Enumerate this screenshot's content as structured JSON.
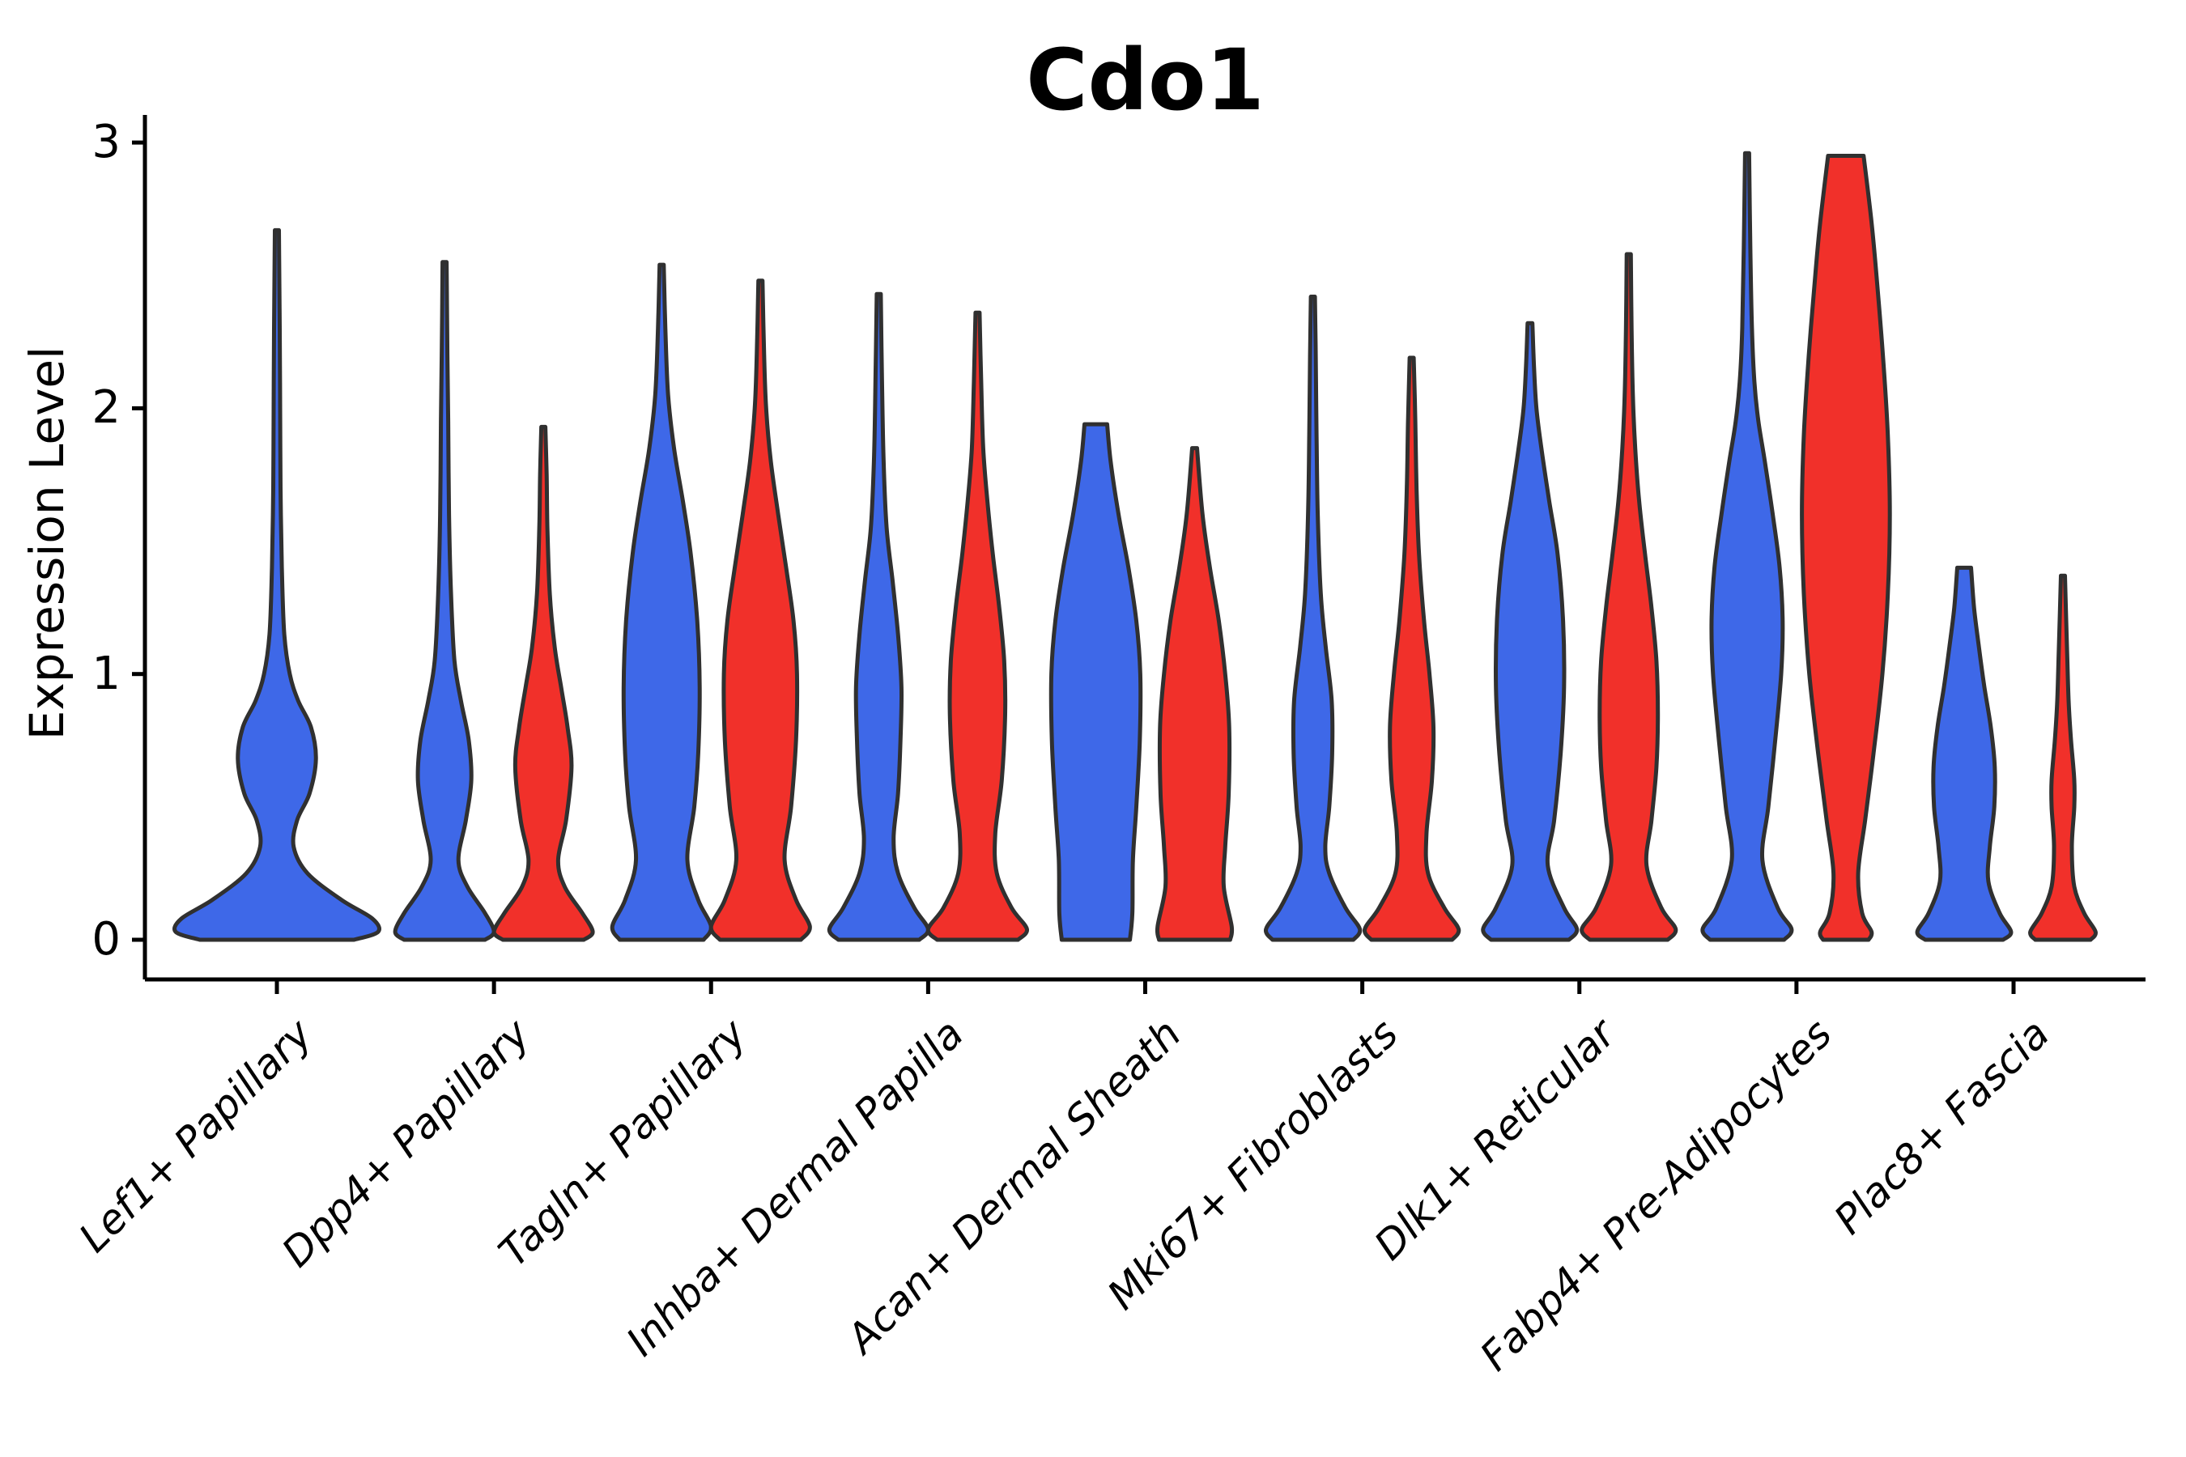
{
  "title": "Cdo1",
  "ylabel": "Expression Level",
  "colors": {
    "blue": "#3E68E8",
    "red": "#F1302A",
    "outline": "#303030",
    "axis": "#000000"
  },
  "chart_data": {
    "type": "violin",
    "title": "Cdo1",
    "ylabel": "Expression Level",
    "ylim": [
      0,
      3
    ],
    "yticks": [
      "0",
      "1",
      "2",
      "3"
    ],
    "grid": false,
    "legend": "none",
    "categories": [
      "Lef1+ Papillary",
      "Dpp4+ Papillary",
      "Tagln+ Papillary",
      "Inhba+ Dermal Papilla",
      "Acan+ Dermal Sheath",
      "Mki67+ Fibroblasts",
      "Dlk1+ Reticular",
      "Fabp4+ Pre-Adipocytes",
      "Plac8+ Fascia"
    ],
    "series_colors": {
      "blue": "#3E68E8",
      "red": "#F1302A"
    },
    "violins": [
      {
        "category_index": 0,
        "series": "blue",
        "side": "center",
        "max_value": 2.67,
        "flat_top": false,
        "profile": [
          [
            0,
            1.56
          ],
          [
            0.03,
            2.05
          ],
          [
            0.08,
            1.93
          ],
          [
            0.15,
            1.31
          ],
          [
            0.25,
            0.62
          ],
          [
            0.35,
            0.34
          ],
          [
            0.45,
            0.41
          ],
          [
            0.55,
            0.66
          ],
          [
            0.68,
            0.79
          ],
          [
            0.8,
            0.69
          ],
          [
            0.9,
            0.43
          ],
          [
            1.0,
            0.26
          ],
          [
            1.15,
            0.15
          ],
          [
            1.4,
            0.1
          ],
          [
            1.7,
            0.074
          ],
          [
            2.0,
            0.066
          ],
          [
            2.3,
            0.057
          ],
          [
            2.67,
            0.041
          ]
        ]
      },
      {
        "category_index": 1,
        "series": "blue",
        "side": "left",
        "max_value": 2.55,
        "flat_top": false,
        "profile": [
          [
            0,
            0.82
          ],
          [
            0.03,
            1.0
          ],
          [
            0.1,
            0.82
          ],
          [
            0.2,
            0.46
          ],
          [
            0.3,
            0.28
          ],
          [
            0.45,
            0.43
          ],
          [
            0.6,
            0.54
          ],
          [
            0.75,
            0.49
          ],
          [
            0.9,
            0.33
          ],
          [
            1.05,
            0.2
          ],
          [
            1.3,
            0.13
          ],
          [
            1.6,
            0.09
          ],
          [
            1.95,
            0.074
          ],
          [
            2.2,
            0.057
          ],
          [
            2.55,
            0.041
          ]
        ]
      },
      {
        "category_index": 1,
        "series": "red",
        "side": "right",
        "max_value": 1.93,
        "flat_top": false,
        "profile": [
          [
            0,
            0.82
          ],
          [
            0.03,
            1.0
          ],
          [
            0.1,
            0.79
          ],
          [
            0.2,
            0.43
          ],
          [
            0.3,
            0.3
          ],
          [
            0.45,
            0.46
          ],
          [
            0.65,
            0.57
          ],
          [
            0.8,
            0.49
          ],
          [
            0.95,
            0.36
          ],
          [
            1.1,
            0.23
          ],
          [
            1.3,
            0.13
          ],
          [
            1.55,
            0.082
          ],
          [
            1.75,
            0.066
          ],
          [
            1.93,
            0.041
          ]
        ]
      },
      {
        "category_index": 2,
        "series": "blue",
        "side": "left",
        "max_value": 2.54,
        "flat_top": false,
        "profile": [
          [
            0,
            0.85
          ],
          [
            0.05,
            1.0
          ],
          [
            0.15,
            0.74
          ],
          [
            0.3,
            0.52
          ],
          [
            0.5,
            0.66
          ],
          [
            0.7,
            0.74
          ],
          [
            0.95,
            0.77
          ],
          [
            1.2,
            0.72
          ],
          [
            1.45,
            0.59
          ],
          [
            1.65,
            0.43
          ],
          [
            1.85,
            0.25
          ],
          [
            2.05,
            0.13
          ],
          [
            2.3,
            0.074
          ],
          [
            2.54,
            0.041
          ]
        ]
      },
      {
        "category_index": 2,
        "series": "red",
        "side": "right",
        "max_value": 2.48,
        "flat_top": false,
        "profile": [
          [
            0,
            0.82
          ],
          [
            0.05,
            1.0
          ],
          [
            0.15,
            0.72
          ],
          [
            0.3,
            0.49
          ],
          [
            0.5,
            0.62
          ],
          [
            0.75,
            0.72
          ],
          [
            1.0,
            0.74
          ],
          [
            1.2,
            0.67
          ],
          [
            1.4,
            0.52
          ],
          [
            1.6,
            0.36
          ],
          [
            1.8,
            0.21
          ],
          [
            2.0,
            0.115
          ],
          [
            2.2,
            0.074
          ],
          [
            2.48,
            0.041
          ]
        ]
      },
      {
        "category_index": 3,
        "series": "blue",
        "side": "left",
        "max_value": 2.43,
        "flat_top": false,
        "profile": [
          [
            0,
            0.82
          ],
          [
            0.04,
            1.0
          ],
          [
            0.12,
            0.72
          ],
          [
            0.25,
            0.39
          ],
          [
            0.38,
            0.3
          ],
          [
            0.55,
            0.39
          ],
          [
            0.75,
            0.44
          ],
          [
            0.95,
            0.46
          ],
          [
            1.15,
            0.39
          ],
          [
            1.35,
            0.28
          ],
          [
            1.55,
            0.16
          ],
          [
            1.8,
            0.098
          ],
          [
            2.1,
            0.066
          ],
          [
            2.43,
            0.041
          ]
        ]
      },
      {
        "category_index": 3,
        "series": "red",
        "side": "right",
        "max_value": 2.36,
        "flat_top": false,
        "profile": [
          [
            0,
            0.82
          ],
          [
            0.04,
            1.0
          ],
          [
            0.12,
            0.69
          ],
          [
            0.25,
            0.39
          ],
          [
            0.4,
            0.36
          ],
          [
            0.6,
            0.49
          ],
          [
            0.85,
            0.56
          ],
          [
            1.05,
            0.54
          ],
          [
            1.25,
            0.44
          ],
          [
            1.45,
            0.31
          ],
          [
            1.65,
            0.2
          ],
          [
            1.85,
            0.115
          ],
          [
            2.1,
            0.074
          ],
          [
            2.36,
            0.041
          ]
        ]
      },
      {
        "category_index": 4,
        "series": "blue",
        "side": "left",
        "max_value": 1.94,
        "flat_top": true,
        "profile": [
          [
            0,
            0.69
          ],
          [
            0.1,
            0.74
          ],
          [
            0.3,
            0.75
          ],
          [
            0.5,
            0.82
          ],
          [
            0.75,
            0.89
          ],
          [
            1.0,
            0.9
          ],
          [
            1.2,
            0.82
          ],
          [
            1.4,
            0.66
          ],
          [
            1.6,
            0.46
          ],
          [
            1.8,
            0.3
          ],
          [
            1.94,
            0.23
          ]
        ]
      },
      {
        "category_index": 4,
        "series": "red",
        "side": "right",
        "max_value": 1.85,
        "flat_top": false,
        "profile": [
          [
            0,
            0.72
          ],
          [
            0.05,
            0.75
          ],
          [
            0.2,
            0.59
          ],
          [
            0.35,
            0.62
          ],
          [
            0.55,
            0.69
          ],
          [
            0.8,
            0.7
          ],
          [
            1.0,
            0.62
          ],
          [
            1.2,
            0.49
          ],
          [
            1.4,
            0.31
          ],
          [
            1.6,
            0.16
          ],
          [
            1.85,
            0.049
          ]
        ]
      },
      {
        "category_index": 5,
        "series": "blue",
        "side": "left",
        "max_value": 2.42,
        "flat_top": false,
        "profile": [
          [
            0,
            0.82
          ],
          [
            0.04,
            0.95
          ],
          [
            0.12,
            0.66
          ],
          [
            0.25,
            0.33
          ],
          [
            0.35,
            0.25
          ],
          [
            0.5,
            0.33
          ],
          [
            0.7,
            0.39
          ],
          [
            0.9,
            0.38
          ],
          [
            1.1,
            0.26
          ],
          [
            1.3,
            0.16
          ],
          [
            1.6,
            0.098
          ],
          [
            1.9,
            0.074
          ],
          [
            2.2,
            0.057
          ],
          [
            2.42,
            0.041
          ]
        ]
      },
      {
        "category_index": 5,
        "series": "red",
        "side": "right",
        "max_value": 2.19,
        "flat_top": false,
        "profile": [
          [
            0,
            0.82
          ],
          [
            0.04,
            0.95
          ],
          [
            0.12,
            0.66
          ],
          [
            0.25,
            0.33
          ],
          [
            0.4,
            0.3
          ],
          [
            0.6,
            0.41
          ],
          [
            0.8,
            0.44
          ],
          [
            1.0,
            0.36
          ],
          [
            1.2,
            0.25
          ],
          [
            1.45,
            0.148
          ],
          [
            1.7,
            0.098
          ],
          [
            1.95,
            0.074
          ],
          [
            2.19,
            0.041
          ]
        ]
      },
      {
        "category_index": 6,
        "series": "blue",
        "side": "left",
        "max_value": 2.32,
        "flat_top": false,
        "profile": [
          [
            0,
            0.79
          ],
          [
            0.04,
            0.95
          ],
          [
            0.12,
            0.69
          ],
          [
            0.28,
            0.36
          ],
          [
            0.45,
            0.49
          ],
          [
            0.7,
            0.62
          ],
          [
            0.95,
            0.69
          ],
          [
            1.2,
            0.67
          ],
          [
            1.45,
            0.56
          ],
          [
            1.65,
            0.39
          ],
          [
            1.85,
            0.23
          ],
          [
            2.0,
            0.13
          ],
          [
            2.15,
            0.082
          ],
          [
            2.32,
            0.049
          ]
        ]
      },
      {
        "category_index": 6,
        "series": "red",
        "side": "right",
        "max_value": 2.58,
        "flat_top": false,
        "profile": [
          [
            0,
            0.79
          ],
          [
            0.04,
            0.95
          ],
          [
            0.12,
            0.66
          ],
          [
            0.28,
            0.36
          ],
          [
            0.45,
            0.46
          ],
          [
            0.65,
            0.56
          ],
          [
            0.85,
            0.59
          ],
          [
            1.05,
            0.56
          ],
          [
            1.25,
            0.46
          ],
          [
            1.45,
            0.33
          ],
          [
            1.65,
            0.21
          ],
          [
            1.85,
            0.13
          ],
          [
            2.05,
            0.082
          ],
          [
            2.3,
            0.057
          ],
          [
            2.58,
            0.041
          ]
        ]
      },
      {
        "category_index": 7,
        "series": "blue",
        "side": "left",
        "max_value": 2.96,
        "flat_top": false,
        "profile": [
          [
            0,
            0.75
          ],
          [
            0.04,
            0.9
          ],
          [
            0.12,
            0.62
          ],
          [
            0.3,
            0.31
          ],
          [
            0.5,
            0.43
          ],
          [
            0.75,
            0.57
          ],
          [
            1.0,
            0.69
          ],
          [
            1.2,
            0.72
          ],
          [
            1.4,
            0.66
          ],
          [
            1.6,
            0.52
          ],
          [
            1.8,
            0.36
          ],
          [
            1.95,
            0.23
          ],
          [
            2.1,
            0.148
          ],
          [
            2.3,
            0.098
          ],
          [
            2.6,
            0.066
          ],
          [
            2.96,
            0.041
          ]
        ]
      },
      {
        "category_index": 7,
        "series": "red",
        "side": "right",
        "max_value": 2.95,
        "flat_top": true,
        "profile": [
          [
            0,
            0.46
          ],
          [
            0.03,
            0.52
          ],
          [
            0.1,
            0.33
          ],
          [
            0.25,
            0.25
          ],
          [
            0.45,
            0.39
          ],
          [
            0.7,
            0.56
          ],
          [
            1.0,
            0.74
          ],
          [
            1.3,
            0.85
          ],
          [
            1.6,
            0.89
          ],
          [
            1.9,
            0.85
          ],
          [
            2.2,
            0.75
          ],
          [
            2.5,
            0.62
          ],
          [
            2.7,
            0.52
          ],
          [
            2.95,
            0.36
          ]
        ]
      },
      {
        "category_index": 8,
        "series": "blue",
        "side": "left",
        "max_value": 1.4,
        "flat_top": true,
        "profile": [
          [
            0,
            0.79
          ],
          [
            0.03,
            0.95
          ],
          [
            0.1,
            0.72
          ],
          [
            0.22,
            0.49
          ],
          [
            0.35,
            0.52
          ],
          [
            0.5,
            0.61
          ],
          [
            0.65,
            0.62
          ],
          [
            0.8,
            0.54
          ],
          [
            0.95,
            0.41
          ],
          [
            1.1,
            0.3
          ],
          [
            1.25,
            0.2
          ],
          [
            1.4,
            0.14
          ]
        ]
      },
      {
        "category_index": 8,
        "series": "red",
        "side": "right",
        "max_value": 1.37,
        "flat_top": false,
        "profile": [
          [
            0,
            0.56
          ],
          [
            0.03,
            0.66
          ],
          [
            0.1,
            0.43
          ],
          [
            0.2,
            0.23
          ],
          [
            0.35,
            0.18
          ],
          [
            0.5,
            0.23
          ],
          [
            0.6,
            0.23
          ],
          [
            0.75,
            0.164
          ],
          [
            0.9,
            0.115
          ],
          [
            1.1,
            0.082
          ],
          [
            1.37,
            0.041
          ]
        ]
      }
    ]
  }
}
